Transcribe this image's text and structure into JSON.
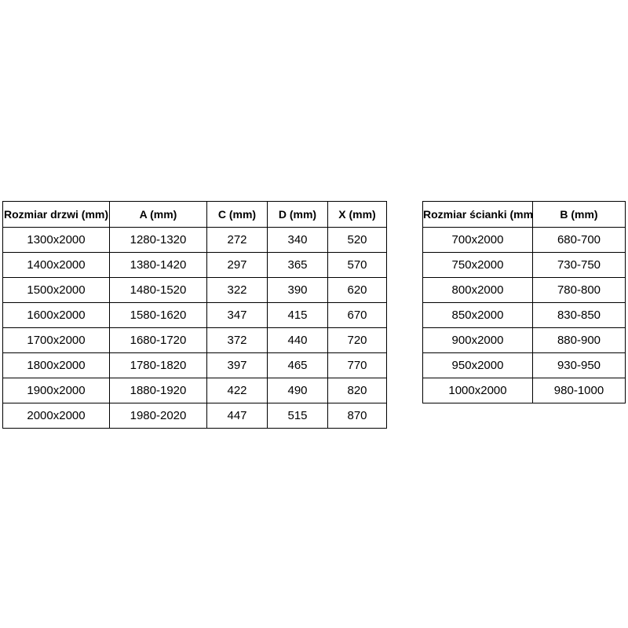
{
  "page": {
    "background_color": "#ffffff",
    "border_color": "#000000",
    "text_color": "#000000"
  },
  "doors_table": {
    "headers": [
      "Rozmiar drzwi (mm)",
      "A (mm)",
      "C (mm)",
      "D (mm)",
      "X (mm)"
    ],
    "rows": [
      [
        "1300x2000",
        "1280-1320",
        "272",
        "340",
        "520"
      ],
      [
        "1400x2000",
        "1380-1420",
        "297",
        "365",
        "570"
      ],
      [
        "1500x2000",
        "1480-1520",
        "322",
        "390",
        "620"
      ],
      [
        "1600x2000",
        "1580-1620",
        "347",
        "415",
        "670"
      ],
      [
        "1700x2000",
        "1680-1720",
        "372",
        "440",
        "720"
      ],
      [
        "1800x2000",
        "1780-1820",
        "397",
        "465",
        "770"
      ],
      [
        "1900x2000",
        "1880-1920",
        "422",
        "490",
        "820"
      ],
      [
        "2000x2000",
        "1980-2020",
        "447",
        "515",
        "870"
      ]
    ]
  },
  "wall_table": {
    "headers": [
      "Rozmiar ścianki (mm)",
      "B (mm)"
    ],
    "rows": [
      [
        "700x2000",
        "680-700"
      ],
      [
        "750x2000",
        "730-750"
      ],
      [
        "800x2000",
        "780-800"
      ],
      [
        "850x2000",
        "830-850"
      ],
      [
        "900x2000",
        "880-900"
      ],
      [
        "950x2000",
        "930-950"
      ],
      [
        "1000x2000",
        "980-1000"
      ]
    ]
  }
}
